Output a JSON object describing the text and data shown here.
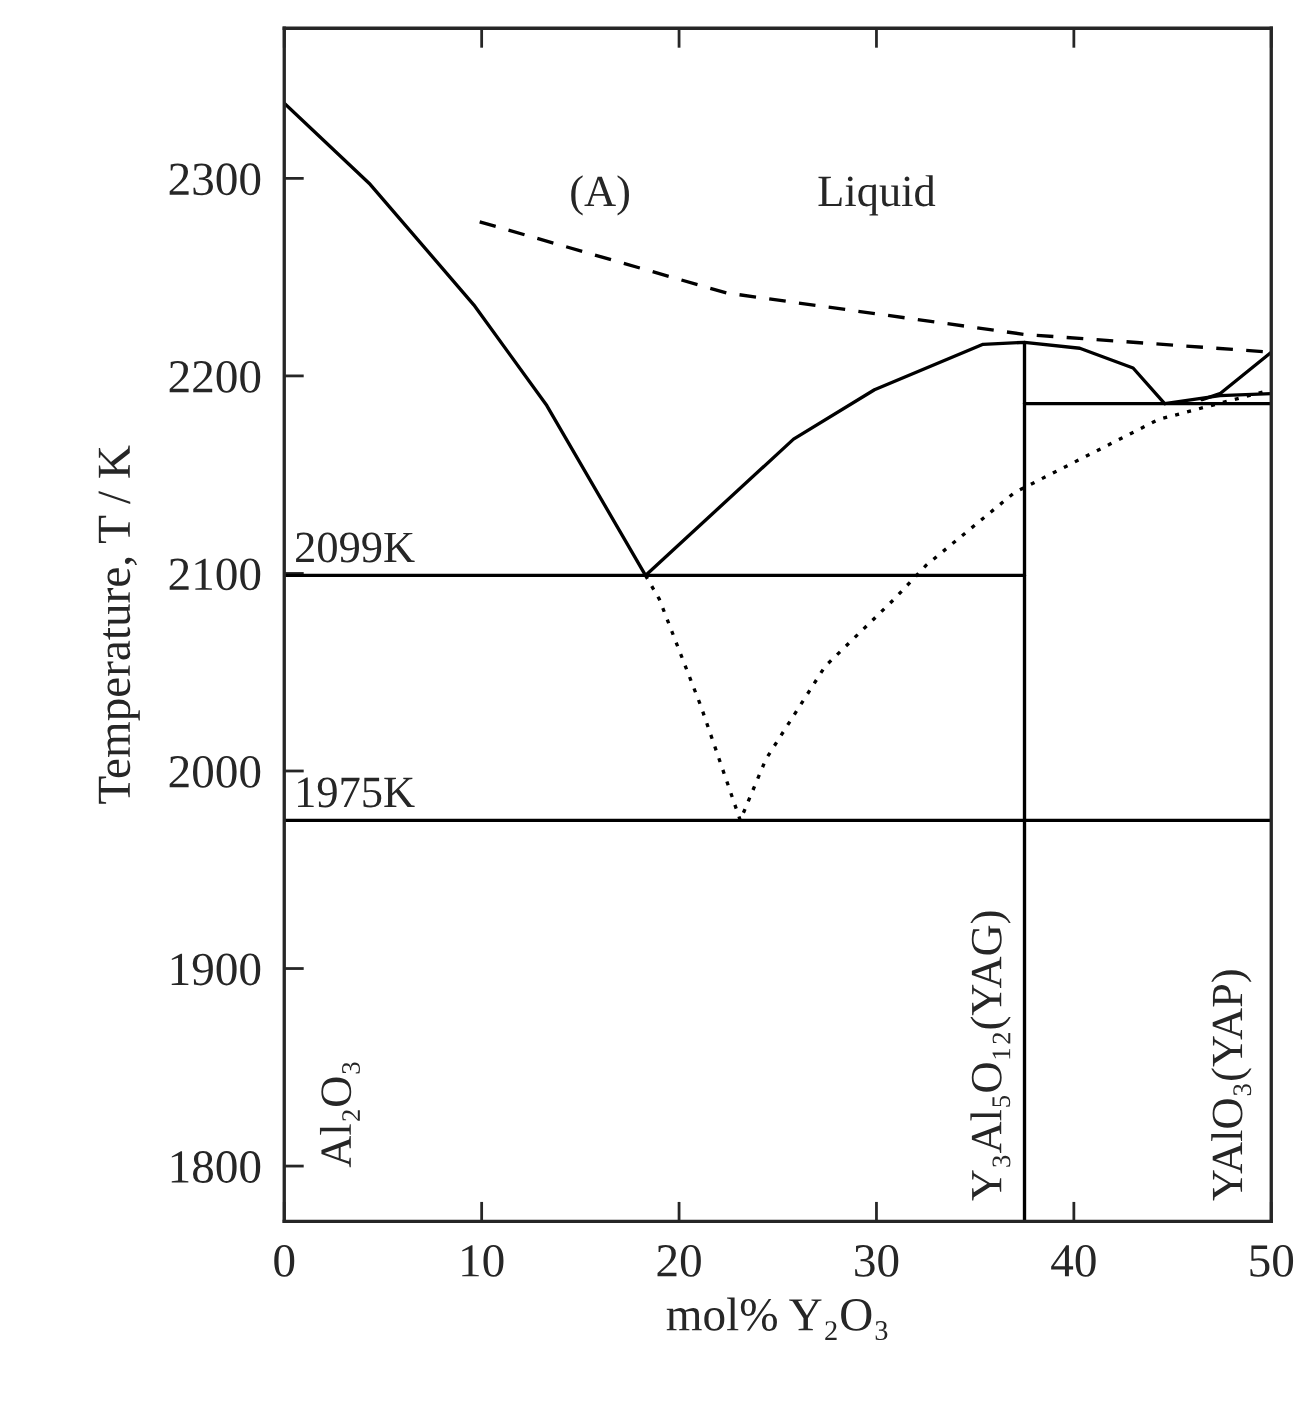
{
  "chart_data": {
    "type": "line",
    "xlabel": "mol% Y₂O₃",
    "ylabel": "Temperature, T / K",
    "xlim": [
      0,
      50
    ],
    "xticks": [
      0,
      10,
      20,
      30,
      40,
      50
    ],
    "ylim": [
      1772,
      2376
    ],
    "yticks": [
      1800,
      1900,
      2000,
      2100,
      2200,
      2300
    ],
    "grid": false,
    "legend": false,
    "series": [
      {
        "color": "#000000",
        "line_style": "solid",
        "x": [
          0,
          4.35,
          9.6,
          13.3,
          18.3
        ],
        "values": [
          2338,
          2297,
          2236,
          2185,
          2099
        ]
      },
      {
        "color": "#000000",
        "line_style": "solid",
        "x": [
          18.3,
          25.8,
          29.9,
          35.4,
          37.5,
          40.3,
          43.0,
          44.6
        ],
        "values": [
          2099,
          2168,
          2193,
          2216,
          2217,
          2214,
          2204,
          2186
        ]
      },
      {
        "color": "#000000",
        "line_style": "solid",
        "x": [
          44.6,
          47.4,
          50
        ],
        "values": [
          2186,
          2190,
          2191
        ]
      },
      {
        "color": "#000000",
        "line_style": "solid",
        "x": [
          46.5,
          47.4,
          50
        ],
        "values": [
          2188,
          2191,
          2212
        ]
      },
      {
        "color": "#000000",
        "line_style": "dashed",
        "x": [
          9.9,
          22.4,
          37.5,
          50
        ],
        "values": [
          2278,
          2242,
          2221,
          2212
        ]
      },
      {
        "color": "#000000",
        "line_style": "dotted",
        "x": [
          18.3,
          19.0,
          21.1,
          23.1,
          24.4,
          27.4,
          30.9,
          32.5,
          37.0,
          44.3,
          50
        ],
        "values": [
          2099,
          2087,
          2033,
          1975,
          2006,
          2053,
          2087,
          2104,
          2141,
          2178,
          2193
        ]
      },
      {
        "color": "#000000",
        "line_style": "solid",
        "x": [
          0,
          37.5
        ],
        "values": [
          2099,
          2099
        ]
      },
      {
        "color": "#000000",
        "line_style": "solid",
        "x": [
          0,
          50
        ],
        "values": [
          1975,
          1975
        ]
      },
      {
        "color": "#000000",
        "line_style": "solid",
        "x": [
          37.5,
          50
        ],
        "values": [
          2186,
          2186
        ]
      },
      {
        "color": "#000000",
        "line_style": "solid",
        "x": [
          37.5,
          37.5
        ],
        "values": [
          1772,
          2217
        ]
      }
    ],
    "annotations": [
      "(A)",
      "Liquid",
      {
        "text": "2099K",
        "x": 0.5,
        "y": 2101
      },
      {
        "text": "1975K",
        "x": 0.5,
        "y": 1977
      },
      "Al₂O₃",
      "Y₃Al₅O₁₂(YAG)",
      "YAlO₃(YAP)"
    ]
  }
}
